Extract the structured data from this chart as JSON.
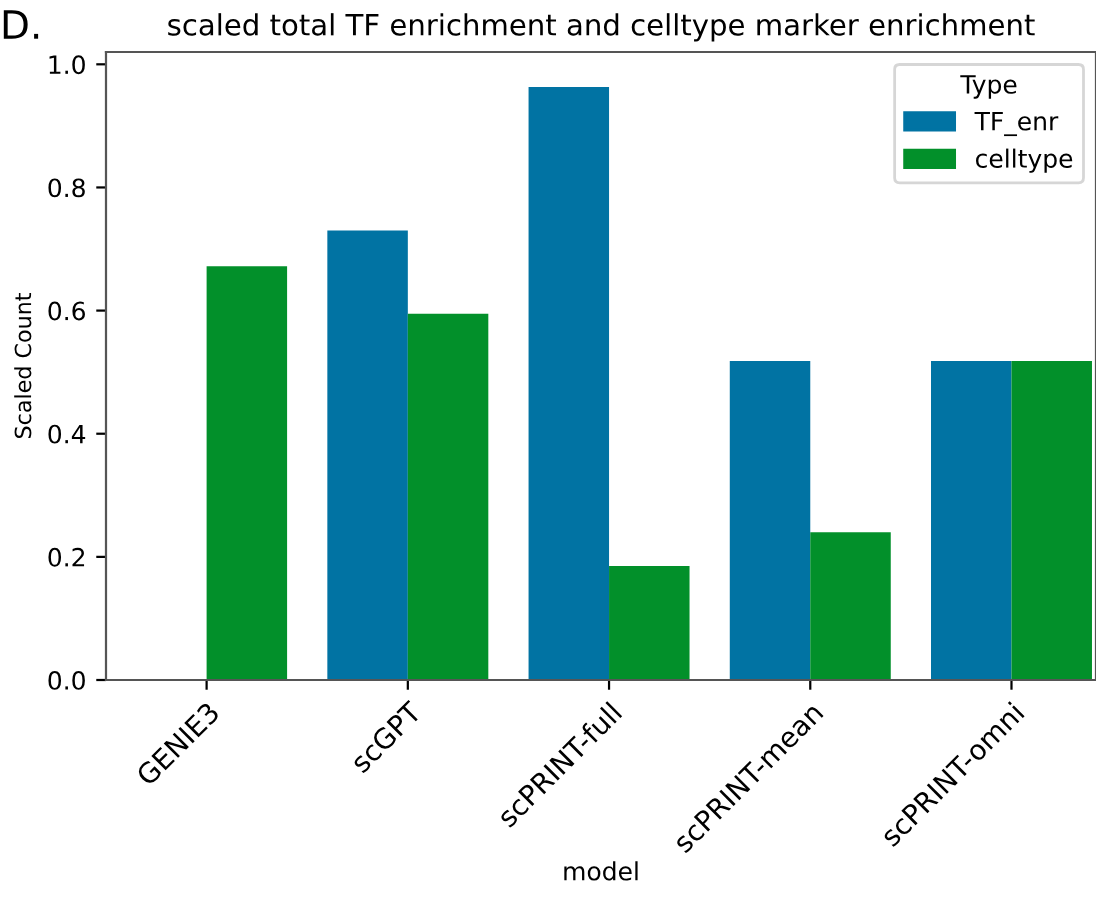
{
  "chart_data": {
    "type": "bar",
    "title": "scaled total TF enrichment and celltype marker enrichment",
    "xlabel": "model",
    "ylabel": "Scaled Count",
    "legend_title": "Type",
    "categories": [
      "GENIE3",
      "scGPT",
      "scPRINT-full",
      "scPRINT-mean",
      "scPRINT-omni"
    ],
    "series": [
      {
        "name": "TF_enr",
        "color": "#0173a3",
        "values": [
          0,
          0.73,
          0.963,
          0.518,
          0.518
        ]
      },
      {
        "name": "celltype",
        "color": "#02902a",
        "values": [
          0.672,
          0.595,
          0.185,
          0.24,
          0.518
        ]
      }
    ],
    "ylim": [
      0,
      1.02
    ],
    "yticks": [
      {
        "value": 0,
        "label": "0.0"
      },
      {
        "value": 0.2,
        "label": "0.2"
      },
      {
        "value": 0.4,
        "label": "0.4"
      },
      {
        "value": 0.6,
        "label": "0.6"
      },
      {
        "value": 0.8,
        "label": "0.8"
      },
      {
        "value": 1.0,
        "label": "1.0"
      }
    ],
    "grid": false,
    "legend": "top right",
    "annotations": [
      "D."
    ]
  }
}
